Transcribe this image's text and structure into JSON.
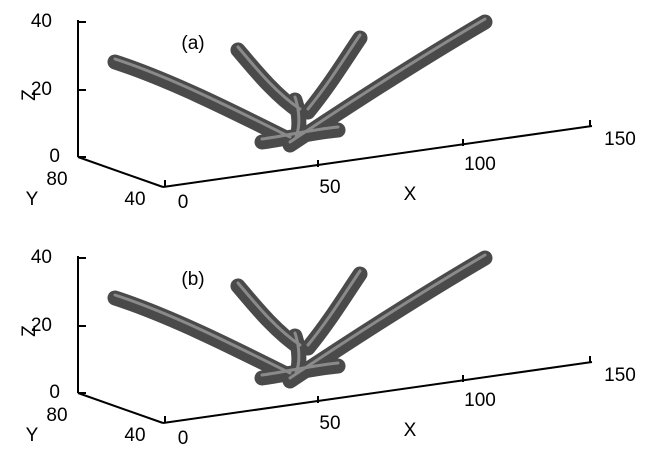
{
  "panels": [
    {
      "label": "(a)",
      "z_label": "Z",
      "y_label": "Y",
      "x_label": "X",
      "z_ticks": [
        0,
        20,
        40
      ],
      "y_ticks": [
        80,
        40
      ],
      "x_ticks": [
        0,
        50,
        100,
        150
      ]
    },
    {
      "label": "(b)",
      "z_label": "Z",
      "y_label": "Y",
      "x_label": "X",
      "z_ticks": [
        0,
        20,
        40
      ],
      "y_ticks": [
        80,
        40
      ],
      "x_ticks": [
        0,
        50,
        100,
        150
      ]
    }
  ]
}
